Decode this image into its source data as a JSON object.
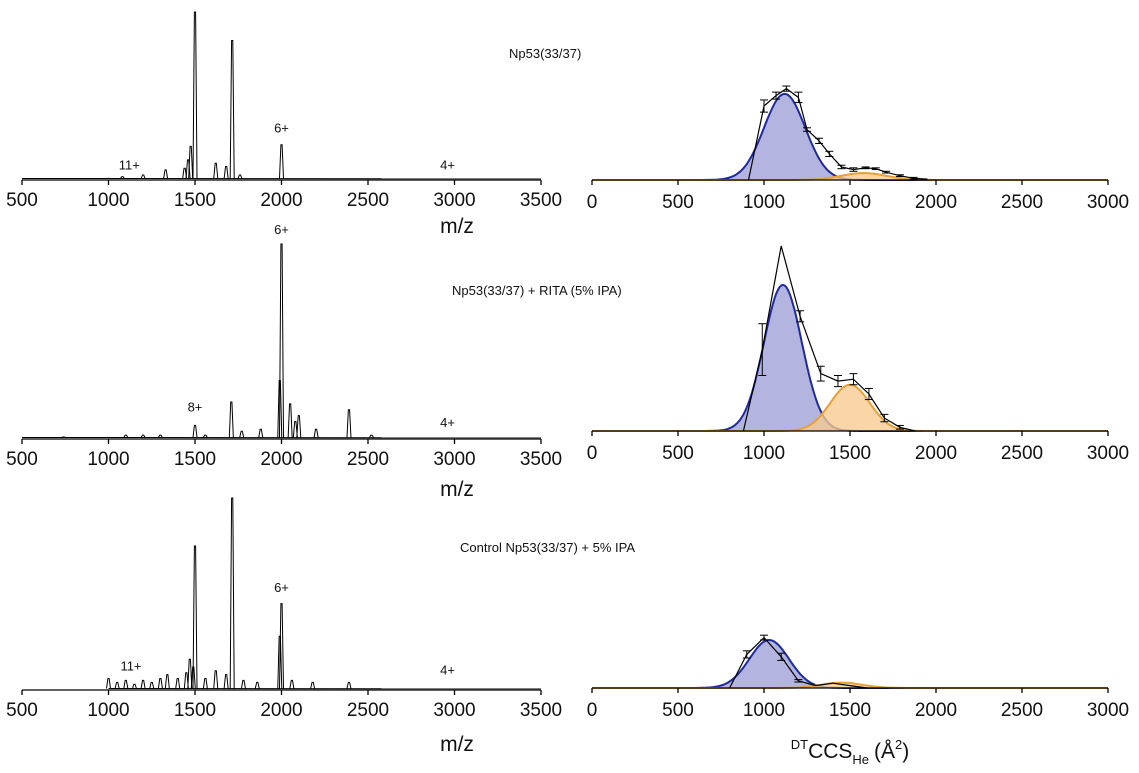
{
  "chart_data": [
    {
      "type": "line",
      "panel": "ms-1",
      "title": "Np53(33/37)",
      "xlabel": "m/z",
      "xlim": [
        500,
        3500
      ],
      "xticks": [
        500,
        1000,
        1500,
        2000,
        2500,
        3000,
        3500
      ],
      "baseline_from": 500,
      "peaks": [
        {
          "x": 1000,
          "y": 0.01
        },
        {
          "x": 1080,
          "y": 0.02
        },
        {
          "x": 1200,
          "y": 0.03
        },
        {
          "x": 1330,
          "y": 0.06
        },
        {
          "x": 1440,
          "y": 0.07
        },
        {
          "x": 1460,
          "y": 0.12
        },
        {
          "x": 1475,
          "y": 0.2
        },
        {
          "x": 1500,
          "y": 1.0
        },
        {
          "x": 1620,
          "y": 0.1
        },
        {
          "x": 1680,
          "y": 0.08
        },
        {
          "x": 1715,
          "y": 0.83
        },
        {
          "x": 1760,
          "y": 0.03
        },
        {
          "x": 2000,
          "y": 0.21
        }
      ],
      "annotations": [
        {
          "label": "11+",
          "x": 1120,
          "y": 0.04
        },
        {
          "label": "6+",
          "x": 2000,
          "y": 0.26
        },
        {
          "label": "4+",
          "x": 2960,
          "y": 0.04
        }
      ]
    },
    {
      "type": "line",
      "panel": "ms-2",
      "title": "Np53(33/37) + RITA (5% IPA)",
      "xlabel": "m/z",
      "xlim": [
        500,
        3500
      ],
      "xticks": [
        500,
        1000,
        1500,
        2000,
        2500,
        3000,
        3500
      ],
      "baseline_from": 500,
      "peaks": [
        {
          "x": 740,
          "y": 0.01
        },
        {
          "x": 1100,
          "y": 0.02
        },
        {
          "x": 1200,
          "y": 0.02
        },
        {
          "x": 1300,
          "y": 0.02
        },
        {
          "x": 1500,
          "y": 0.07
        },
        {
          "x": 1560,
          "y": 0.02
        },
        {
          "x": 1710,
          "y": 0.19
        },
        {
          "x": 1770,
          "y": 0.04
        },
        {
          "x": 1880,
          "y": 0.05
        },
        {
          "x": 1990,
          "y": 0.3
        },
        {
          "x": 2000,
          "y": 1.0
        },
        {
          "x": 2050,
          "y": 0.18
        },
        {
          "x": 2080,
          "y": 0.09
        },
        {
          "x": 2100,
          "y": 0.12
        },
        {
          "x": 2200,
          "y": 0.05
        },
        {
          "x": 2390,
          "y": 0.15
        },
        {
          "x": 2520,
          "y": 0.02
        }
      ],
      "annotations": [
        {
          "label": "6+",
          "x": 2000,
          "y": 1.03
        },
        {
          "label": "8+",
          "x": 1500,
          "y": 0.12
        },
        {
          "label": "4+",
          "x": 2960,
          "y": 0.04
        }
      ]
    },
    {
      "type": "line",
      "panel": "ms-3",
      "title": "Control Np53(33/37) + 5% IPA",
      "xlabel": "m/z",
      "xlim": [
        500,
        3500
      ],
      "xticks": [
        500,
        1000,
        1500,
        2000,
        2500,
        3000,
        3500
      ],
      "baseline_from": 1000,
      "peaks": [
        {
          "x": 1000,
          "y": 0.06
        },
        {
          "x": 1050,
          "y": 0.04
        },
        {
          "x": 1100,
          "y": 0.05
        },
        {
          "x": 1150,
          "y": 0.03
        },
        {
          "x": 1200,
          "y": 0.05
        },
        {
          "x": 1250,
          "y": 0.04
        },
        {
          "x": 1300,
          "y": 0.06
        },
        {
          "x": 1340,
          "y": 0.08
        },
        {
          "x": 1400,
          "y": 0.06
        },
        {
          "x": 1450,
          "y": 0.09
        },
        {
          "x": 1470,
          "y": 0.16
        },
        {
          "x": 1490,
          "y": 0.12
        },
        {
          "x": 1500,
          "y": 0.75
        },
        {
          "x": 1560,
          "y": 0.06
        },
        {
          "x": 1620,
          "y": 0.1
        },
        {
          "x": 1680,
          "y": 0.08
        },
        {
          "x": 1715,
          "y": 1.0
        },
        {
          "x": 1780,
          "y": 0.05
        },
        {
          "x": 1860,
          "y": 0.04
        },
        {
          "x": 1990,
          "y": 0.28
        },
        {
          "x": 2000,
          "y": 0.45
        },
        {
          "x": 2060,
          "y": 0.05
        },
        {
          "x": 2180,
          "y": 0.04
        },
        {
          "x": 2390,
          "y": 0.04
        }
      ],
      "annotations": [
        {
          "label": "11+",
          "x": 1130,
          "y": 0.08
        },
        {
          "label": "6+",
          "x": 2000,
          "y": 0.49
        },
        {
          "label": "4+",
          "x": 2960,
          "y": 0.06
        }
      ]
    },
    {
      "type": "area",
      "panel": "ccs-1",
      "xlim": [
        0,
        3000
      ],
      "xticks": [
        0,
        500,
        1000,
        1500,
        2000,
        2500,
        3000
      ],
      "xlabel": "",
      "fits": [
        {
          "color": "#1f2a9e",
          "fill": "#9e9fd6",
          "mean": 1120,
          "sd": 120,
          "amp": 0.99
        },
        {
          "color": "#e8a035",
          "fill": "#f7c98e",
          "mean": 1580,
          "sd": 130,
          "amp": 0.08
        }
      ],
      "measured": {
        "x": [
          910,
          1000,
          1070,
          1130,
          1200,
          1250,
          1320,
          1380,
          1450,
          1520,
          1590,
          1650,
          1710,
          1790,
          1870,
          1950
        ],
        "y": [
          0.0,
          0.85,
          0.97,
          1.05,
          0.95,
          0.58,
          0.45,
          0.3,
          0.15,
          0.12,
          0.14,
          0.13,
          0.09,
          0.05,
          0.02,
          0.01
        ],
        "err": [
          0.0,
          0.07,
          0.04,
          0.03,
          0.06,
          0.02,
          0.03,
          0.03,
          0.02,
          0.02,
          0.01,
          0.01,
          0.01,
          0.01,
          0.01,
          0.0
        ]
      }
    },
    {
      "type": "area",
      "panel": "ccs-2",
      "xlim": [
        0,
        3000
      ],
      "xticks": [
        0,
        500,
        1000,
        1500,
        2000,
        2500,
        3000
      ],
      "xlabel": "",
      "fits": [
        {
          "color": "#1f2a9e",
          "fill": "#9e9fd6",
          "mean": 1110,
          "sd": 110,
          "amp": 0.79
        },
        {
          "color": "#e8a035",
          "fill": "#f7c98e",
          "mean": 1500,
          "sd": 115,
          "amp": 0.25
        }
      ],
      "measured": {
        "x": [
          880,
          990,
          1100,
          1210,
          1330,
          1430,
          1520,
          1610,
          1700,
          1790,
          1880
        ],
        "y": [
          0.0,
          0.44,
          1.0,
          0.62,
          0.31,
          0.27,
          0.28,
          0.2,
          0.07,
          0.02,
          0.0
        ],
        "err": [
          0.0,
          0.14,
          0.0,
          0.03,
          0.04,
          0.03,
          0.03,
          0.03,
          0.02,
          0.01,
          0.0
        ]
      }
    },
    {
      "type": "area",
      "panel": "ccs-3",
      "xlim": [
        0,
        3000
      ],
      "xticks": [
        0,
        500,
        1000,
        1500,
        2000,
        2500,
        3000
      ],
      "xlabel": "DTCCS He (Å2)",
      "fits": [
        {
          "color": "#1f2a9e",
          "fill": "#9e9fd6",
          "mean": 1030,
          "sd": 115,
          "amp": 0.4
        },
        {
          "color": "#e8a035",
          "fill": "#f7c98e",
          "mean": 1450,
          "sd": 120,
          "amp": 0.045
        }
      ],
      "measured": {
        "x": [
          800,
          900,
          1000,
          1100,
          1200,
          1300,
          1400,
          1500,
          1600
        ],
        "y": [
          0.0,
          0.28,
          0.42,
          0.26,
          0.06,
          0.02,
          0.04,
          0.02,
          0.0
        ],
        "err": [
          0.0,
          0.03,
          0.02,
          0.03,
          0.01,
          0.0,
          0.0,
          0.0,
          0.0
        ]
      }
    }
  ],
  "xlabel_ms": "m/z",
  "xlabel_ccs": {
    "pre": "DT",
    "main": "CCS",
    "sub": "He",
    "open": "(Å",
    "sup": "2",
    "close": ")"
  }
}
